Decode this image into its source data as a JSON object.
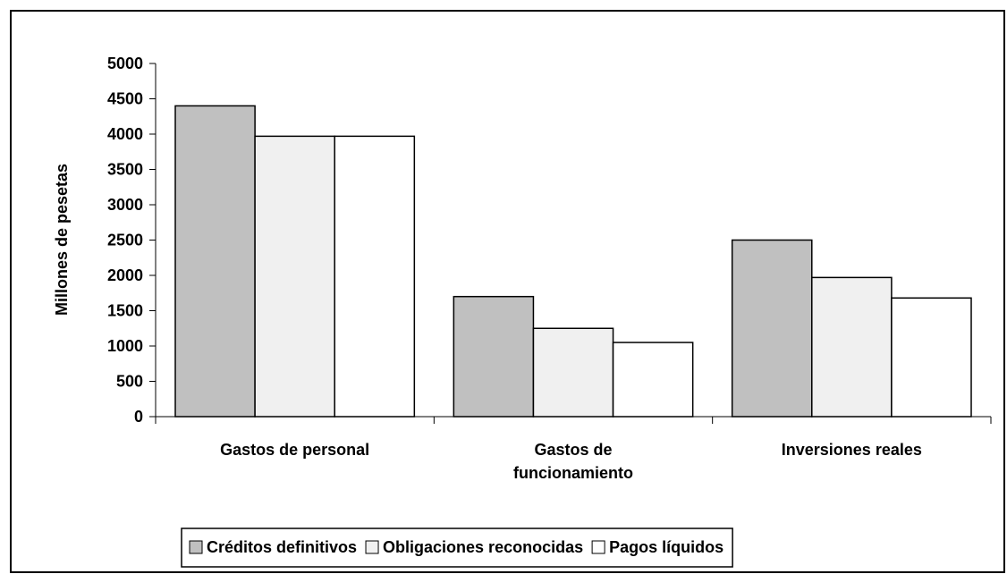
{
  "chart_data": {
    "type": "bar",
    "y_label": "Millones de pesetas",
    "categories": [
      "Gastos de personal",
      "Gastos de funcionamiento",
      "Inversiones reales"
    ],
    "series": [
      {
        "name": "Créditos definitivos",
        "color": "#c0c0c0",
        "values": [
          4400,
          1700,
          2500
        ]
      },
      {
        "name": "Obligaciones reconocidas",
        "color": "#f0f0f0",
        "values": [
          3970,
          1250,
          1970
        ]
      },
      {
        "name": "Pagos líquidos",
        "color": "#ffffff",
        "values": [
          3970,
          1050,
          1680
        ]
      }
    ],
    "ylim": [
      0,
      5000
    ],
    "yticks": [
      0,
      500,
      1000,
      1500,
      2000,
      2500,
      3000,
      3500,
      4000,
      4500,
      5000
    ]
  }
}
